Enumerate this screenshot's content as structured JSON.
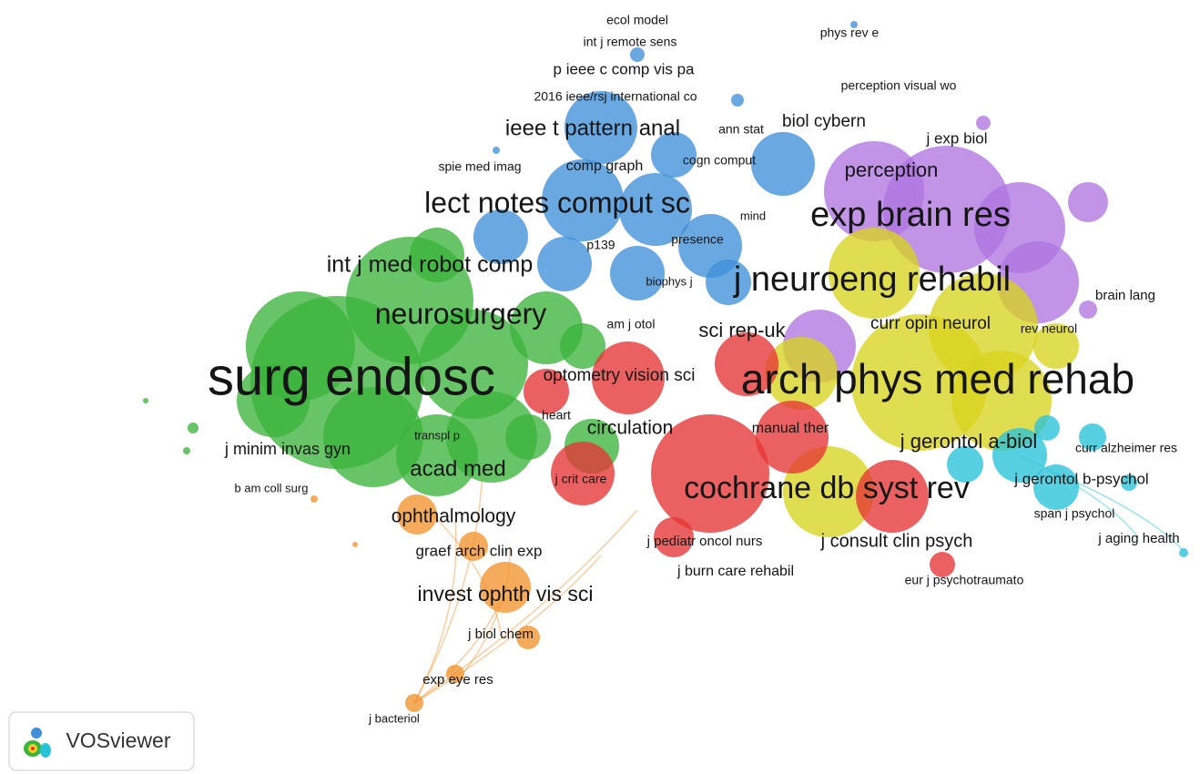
{
  "nodes": [
    {
      "label": "ecol model"
    },
    {
      "label": "int j remote sens"
    },
    {
      "label": "phys rev e"
    },
    {
      "label": "p ieee c comp vis pa"
    },
    {
      "label": "2016 ieee/rsj international co"
    },
    {
      "label": "perception visual wo"
    },
    {
      "label": "ieee t pattern anal"
    },
    {
      "label": "ann stat"
    },
    {
      "label": "biol cybern"
    },
    {
      "label": "j exp biol"
    },
    {
      "label": "spie med imag"
    },
    {
      "label": "comp graph"
    },
    {
      "label": "cogn comput"
    },
    {
      "label": "perception"
    },
    {
      "label": "lect notes comput sc"
    },
    {
      "label": "mind"
    },
    {
      "label": "exp brain res"
    },
    {
      "label": "presence"
    },
    {
      "label": "p139"
    },
    {
      "label": "int j med robot comp"
    },
    {
      "label": "biophys j"
    },
    {
      "label": "j neuroeng rehabil"
    },
    {
      "label": "brain lang"
    },
    {
      "label": "neurosurgery"
    },
    {
      "label": "am j otol"
    },
    {
      "label": "sci rep-uk"
    },
    {
      "label": "curr opin neurol"
    },
    {
      "label": "rev neurol"
    },
    {
      "label": "surg endosc"
    },
    {
      "label": "optometry vision sci"
    },
    {
      "label": "arch phys med rehab"
    },
    {
      "label": "heart"
    },
    {
      "label": "circulation"
    },
    {
      "label": "manual ther"
    },
    {
      "label": "transpl p"
    },
    {
      "label": "j gerontol a-biol"
    },
    {
      "label": "curr alzheimer res"
    },
    {
      "label": "j minim invas gyn"
    },
    {
      "label": "acad med"
    },
    {
      "label": "j crit care"
    },
    {
      "label": "cochrane db syst rev"
    },
    {
      "label": "j gerontol b-psychol"
    },
    {
      "label": "b am coll surg"
    },
    {
      "label": "ophthalmology"
    },
    {
      "label": "span j psychol"
    },
    {
      "label": "j pediatr oncol nurs"
    },
    {
      "label": "j consult clin psych"
    },
    {
      "label": "j aging health"
    },
    {
      "label": "graef arch clin exp"
    },
    {
      "label": "j burn care rehabil"
    },
    {
      "label": "eur j psychotraumato"
    },
    {
      "label": "invest ophth vis sci"
    },
    {
      "label": "j biol chem"
    },
    {
      "label": "exp eye res"
    },
    {
      "label": "j bacteriol"
    }
  ],
  "logo": {
    "text": "VOSviewer"
  }
}
